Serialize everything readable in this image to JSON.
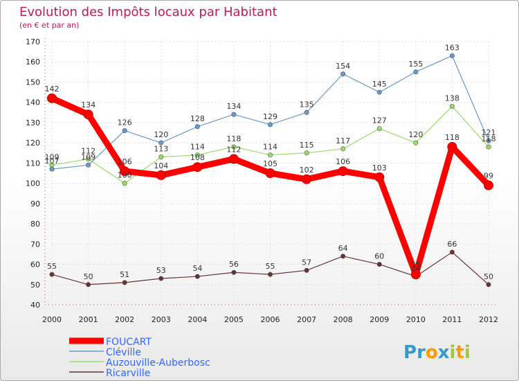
{
  "chart_data": {
    "type": "line",
    "title": "Evolution des Impôts locaux par Habitant",
    "subtitle": "(en € et par an)",
    "x": [
      "2000",
      "2001",
      "2002",
      "2003",
      "2004",
      "2005",
      "2006",
      "2007",
      "2008",
      "2009",
      "2010",
      "2011",
      "2012"
    ],
    "ylim": [
      40,
      170
    ],
    "yticks": [
      40,
      50,
      60,
      70,
      80,
      90,
      100,
      110,
      120,
      130,
      140,
      150,
      160,
      170
    ],
    "grid": true,
    "legend_position": "bottom-left",
    "series": [
      {
        "name": "FOUCART",
        "color": "#ff0000",
        "values": [
          142,
          134,
          106,
          104,
          108,
          112,
          105,
          102,
          106,
          103,
          55,
          118,
          99
        ]
      },
      {
        "name": "Cléville",
        "color": "#6699cc",
        "values": [
          107,
          109,
          126,
          120,
          128,
          134,
          129,
          135,
          154,
          145,
          155,
          163,
          121
        ]
      },
      {
        "name": "Auzouville-Auberbosc",
        "color": "#99dd66",
        "values": [
          109,
          112,
          100,
          113,
          114,
          118,
          114,
          115,
          117,
          127,
          120,
          138,
          118
        ]
      },
      {
        "name": "Ricarville",
        "color": "#663333",
        "values": [
          55,
          50,
          51,
          53,
          54,
          56,
          55,
          57,
          64,
          60,
          54,
          66,
          50
        ]
      }
    ]
  },
  "logo": {
    "text": "Proxiti",
    "letters": [
      "P",
      "r",
      "o",
      "x",
      "i",
      "t",
      "i"
    ],
    "colors": [
      "#3399cc",
      "#3399cc",
      "#ff9900",
      "#3399cc",
      "#99cc33",
      "#ff9900",
      "#99cc33"
    ]
  }
}
